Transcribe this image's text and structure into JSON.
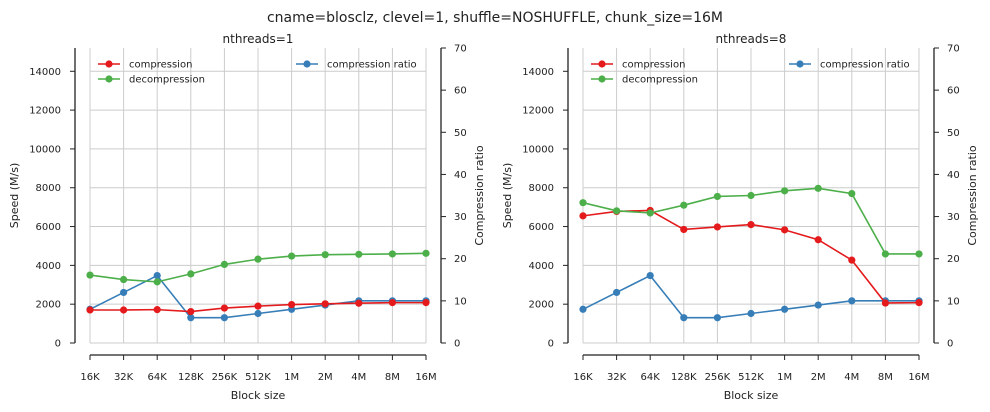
{
  "figure": {
    "title": "cname=blosclz, clevel=1, shuffle=NOSHUFFLE, chunk_size=16M"
  },
  "colors": {
    "compression": "#e41a1c",
    "decompression": "#4daf4a",
    "compression_ratio": "#377eb8",
    "grid": "#cccccc",
    "axis": "#222222"
  },
  "chart_data": [
    {
      "type": "line",
      "title": "nthreads=1",
      "xlabel": "Block size",
      "ylabel": "Speed (M/s)",
      "y2label": "Compression ratio",
      "categories": [
        "16K",
        "32K",
        "64K",
        "128K",
        "256K",
        "512K",
        "1M",
        "2M",
        "4M",
        "8M",
        "16M"
      ],
      "ylim": [
        0,
        15200
      ],
      "y2lim": [
        0,
        70
      ],
      "yticks": [
        0,
        2000,
        4000,
        6000,
        8000,
        10000,
        12000,
        14000
      ],
      "y2ticks": [
        0,
        10,
        20,
        30,
        40,
        50,
        60,
        70
      ],
      "grid": true,
      "legend_left_position": "upper left",
      "legend_right_position": "upper right",
      "series": [
        {
          "name": "compression",
          "axis": "left",
          "color": "#e41a1c",
          "values": [
            1700,
            1700,
            1720,
            1620,
            1800,
            1900,
            1980,
            2020,
            2050,
            2080,
            2080
          ]
        },
        {
          "name": "decompression",
          "axis": "left",
          "color": "#4daf4a",
          "values": [
            3500,
            3270,
            3150,
            3560,
            4050,
            4320,
            4480,
            4550,
            4570,
            4590,
            4620
          ]
        }
      ],
      "series_right": [
        {
          "name": "compression ratio",
          "axis": "right",
          "color": "#377eb8",
          "values": [
            8.0,
            12.0,
            16.0,
            6.0,
            6.0,
            7.0,
            8.0,
            9.0,
            10.0,
            10.0,
            10.0
          ]
        }
      ]
    },
    {
      "type": "line",
      "title": "nthreads=8",
      "xlabel": "Block size",
      "ylabel": "Speed (M/s)",
      "y2label": "Compression ratio",
      "categories": [
        "16K",
        "32K",
        "64K",
        "128K",
        "256K",
        "512K",
        "1M",
        "2M",
        "4M",
        "8M",
        "16M"
      ],
      "ylim": [
        0,
        15200
      ],
      "y2lim": [
        0,
        70
      ],
      "yticks": [
        0,
        2000,
        4000,
        6000,
        8000,
        10000,
        12000,
        14000
      ],
      "y2ticks": [
        0,
        10,
        20,
        30,
        40,
        50,
        60,
        70
      ],
      "grid": true,
      "legend_left_position": "upper left",
      "legend_right_position": "upper right",
      "series": [
        {
          "name": "compression",
          "axis": "left",
          "color": "#e41a1c",
          "values": [
            6550,
            6780,
            6830,
            5850,
            5980,
            6100,
            5830,
            5320,
            4270,
            2060,
            2080
          ]
        },
        {
          "name": "decompression",
          "axis": "left",
          "color": "#4daf4a",
          "values": [
            7230,
            6810,
            6700,
            7100,
            7550,
            7600,
            7840,
            7970,
            7700,
            4590,
            4590
          ]
        }
      ],
      "series_right": [
        {
          "name": "compression ratio",
          "axis": "right",
          "color": "#377eb8",
          "values": [
            8.0,
            12.0,
            16.0,
            6.0,
            6.0,
            7.0,
            8.0,
            9.0,
            10.0,
            10.0,
            10.0
          ]
        }
      ]
    }
  ]
}
